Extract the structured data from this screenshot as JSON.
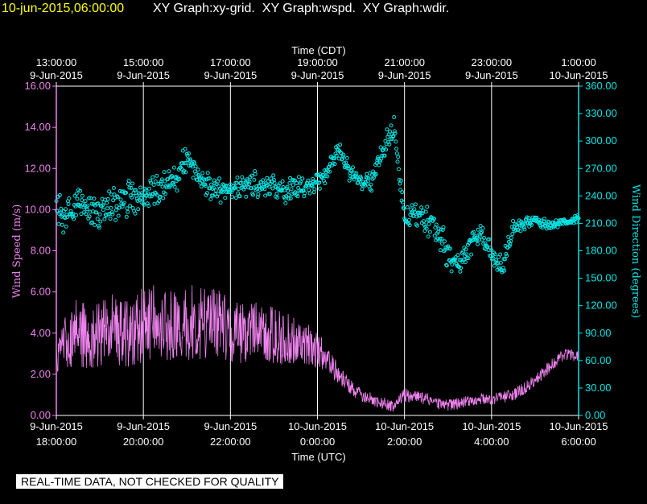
{
  "header": {
    "timestamp": "10-jun-2015,06:00:00",
    "titles": [
      "XY Graph:xy-grid.",
      "XY Graph:wspd.",
      "XY Graph:wdir."
    ]
  },
  "disclaimer": "REAL-TIME DATA, NOT CHECKED FOR QUALITY",
  "colors": {
    "background": "#000000",
    "grid": "#ffffff",
    "speed": "#ee82ee",
    "direction": "#00e5e5",
    "timestamp": "#ffff00"
  },
  "chart_data": {
    "type": "line",
    "title": "XY Graph",
    "top_axis": {
      "label": "Time (CDT)",
      "ticks": [
        {
          "hours": 0,
          "line1": "13:00:00",
          "line2": "9-Jun-2015"
        },
        {
          "hours": 2,
          "line1": "15:00:00",
          "line2": "9-Jun-2015"
        },
        {
          "hours": 4,
          "line1": "17:00:00",
          "line2": "9-Jun-2015"
        },
        {
          "hours": 6,
          "line1": "19:00:00",
          "line2": "9-Jun-2015"
        },
        {
          "hours": 8,
          "line1": "21:00:00",
          "line2": "9-Jun-2015"
        },
        {
          "hours": 10,
          "line1": "23:00:00",
          "line2": "9-Jun-2015"
        },
        {
          "hours": 12,
          "line1": "1:00:00",
          "line2": "10-Jun-2015"
        }
      ]
    },
    "bottom_axis": {
      "label": "Time (UTC)",
      "ticks": [
        {
          "hours": 0,
          "line1": "9-Jun-2015",
          "line2": "18:00:00"
        },
        {
          "hours": 2,
          "line1": "9-Jun-2015",
          "line2": "20:00:00"
        },
        {
          "hours": 4,
          "line1": "9-Jun-2015",
          "line2": "22:00:00"
        },
        {
          "hours": 6,
          "line1": "10-Jun-2015",
          "line2": "0:00:00"
        },
        {
          "hours": 8,
          "line1": "10-Jun-2015",
          "line2": "2:00:00"
        },
        {
          "hours": 10,
          "line1": "10-Jun-2015",
          "line2": "4:00:00"
        },
        {
          "hours": 12,
          "line1": "10-Jun-2015",
          "line2": "6:00:00"
        }
      ]
    },
    "x_range_hours": [
      0,
      12
    ],
    "left_axis": {
      "label": "Wind Speed (m/s)",
      "range": [
        0,
        16
      ],
      "ticks": [
        "0.00",
        "2.00",
        "4.00",
        "6.00",
        "8.00",
        "10.00",
        "12.00",
        "14.00",
        "16.00"
      ]
    },
    "right_axis": {
      "label": "Wind Direction (degrees)",
      "range": [
        0,
        360
      ],
      "ticks": [
        "0.00",
        "30.00",
        "60.00",
        "90.00",
        "120.00",
        "150.00",
        "180.00",
        "210.00",
        "240.00",
        "270.00",
        "300.00",
        "330.00",
        "360.00"
      ]
    },
    "series": [
      {
        "name": "wspd",
        "axis": "left",
        "style": "line",
        "x": [
          0.0,
          0.25,
          0.5,
          0.75,
          1.0,
          1.25,
          1.5,
          1.75,
          2.0,
          2.25,
          2.5,
          2.75,
          3.0,
          3.25,
          3.5,
          3.75,
          4.0,
          4.25,
          4.5,
          4.75,
          5.0,
          5.25,
          5.5,
          5.75,
          6.0,
          6.25,
          6.5,
          6.75,
          7.0,
          7.25,
          7.5,
          7.75,
          8.0,
          8.25,
          8.5,
          8.75,
          9.0,
          9.25,
          9.5,
          9.75,
          10.0,
          10.25,
          10.5,
          10.75,
          11.0,
          11.25,
          11.5,
          11.75,
          12.0
        ],
        "values": [
          3.0,
          3.6,
          4.2,
          3.6,
          4.0,
          4.3,
          3.9,
          4.1,
          4.3,
          4.5,
          4.5,
          4.3,
          4.4,
          4.6,
          4.4,
          4.5,
          4.2,
          4.0,
          4.1,
          4.0,
          3.9,
          3.7,
          3.6,
          3.5,
          3.2,
          2.6,
          2.0,
          1.4,
          1.0,
          0.8,
          0.6,
          0.4,
          1.0,
          0.9,
          0.8,
          0.6,
          0.5,
          0.6,
          0.7,
          0.8,
          0.8,
          0.9,
          1.0,
          1.3,
          1.7,
          2.2,
          2.7,
          3.0,
          2.9
        ],
        "amplitude": [
          0.9,
          1.4,
          1.7,
          1.5,
          1.6,
          1.7,
          1.6,
          1.8,
          1.9,
          1.9,
          1.8,
          1.7,
          1.8,
          1.9,
          1.7,
          1.7,
          1.6,
          1.5,
          1.5,
          1.4,
          1.4,
          1.3,
          1.2,
          1.1,
          0.9,
          0.7,
          0.5,
          0.4,
          0.35,
          0.3,
          0.3,
          0.3,
          0.35,
          0.3,
          0.3,
          0.3,
          0.3,
          0.3,
          0.3,
          0.3,
          0.3,
          0.3,
          0.3,
          0.3,
          0.3,
          0.3,
          0.3,
          0.3,
          0.3
        ]
      },
      {
        "name": "wdir",
        "axis": "right",
        "style": "markers",
        "x": [
          0.0,
          0.25,
          0.5,
          0.75,
          1.0,
          1.25,
          1.5,
          1.75,
          2.0,
          2.25,
          2.5,
          2.75,
          3.0,
          3.25,
          3.5,
          3.75,
          4.0,
          4.25,
          4.5,
          4.75,
          5.0,
          5.25,
          5.5,
          5.75,
          6.0,
          6.25,
          6.5,
          6.75,
          7.0,
          7.25,
          7.5,
          7.75,
          8.0,
          8.25,
          8.5,
          8.75,
          9.0,
          9.25,
          9.5,
          9.75,
          10.0,
          10.25,
          10.5,
          10.75,
          11.0,
          11.25,
          11.5,
          11.75,
          12.0
        ],
        "values": [
          225,
          220,
          228,
          230,
          225,
          232,
          235,
          240,
          240,
          245,
          252,
          258,
          283,
          270,
          250,
          248,
          245,
          250,
          255,
          250,
          250,
          245,
          250,
          248,
          255,
          270,
          290,
          265,
          255,
          255,
          290,
          315,
          215,
          220,
          215,
          200,
          180,
          160,
          185,
          200,
          175,
          160,
          205,
          210,
          215,
          208,
          210,
          212,
          215
        ],
        "amplitude": [
          18,
          18,
          18,
          18,
          18,
          18,
          18,
          18,
          16,
          16,
          14,
          14,
          16,
          16,
          14,
          12,
          12,
          12,
          12,
          12,
          12,
          12,
          12,
          12,
          10,
          10,
          10,
          10,
          8,
          10,
          12,
          14,
          12,
          12,
          14,
          14,
          16,
          16,
          12,
          10,
          12,
          12,
          8,
          6,
          5,
          5,
          4,
          4,
          4
        ]
      }
    ]
  }
}
